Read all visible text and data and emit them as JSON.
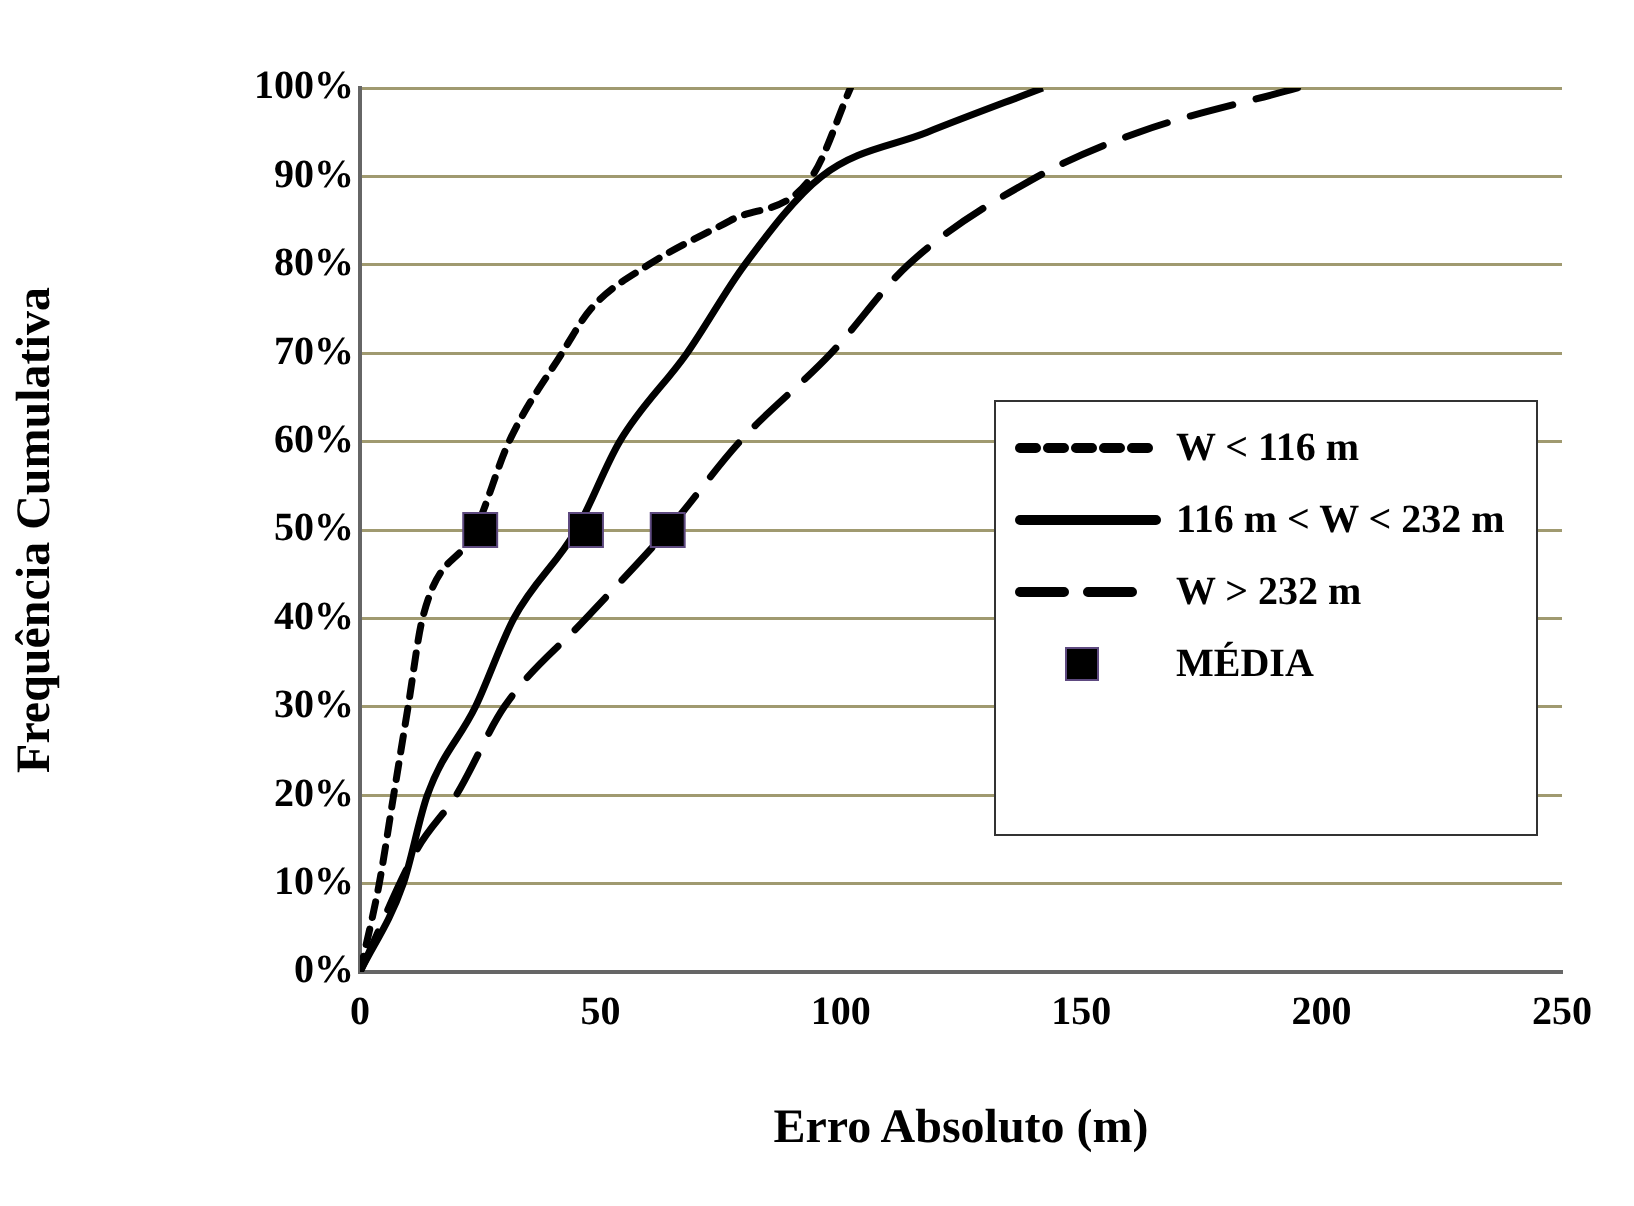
{
  "chart_data": {
    "type": "line",
    "xlabel": "Erro Absoluto (m)",
    "ylabel": "Frequência Cumulativa",
    "xlim": [
      0,
      250
    ],
    "xticks": [
      0,
      50,
      100,
      150,
      200,
      250
    ],
    "ylim": [
      0,
      100
    ],
    "yticks": [
      {
        "value": 0,
        "label": "0%"
      },
      {
        "value": 10,
        "label": "10%"
      },
      {
        "value": 20,
        "label": "20%"
      },
      {
        "value": 30,
        "label": "30%"
      },
      {
        "value": 40,
        "label": "40%"
      },
      {
        "value": 50,
        "label": "50%"
      },
      {
        "value": 60,
        "label": "60%"
      },
      {
        "value": 70,
        "label": "70%"
      },
      {
        "value": 80,
        "label": "80%"
      },
      {
        "value": 90,
        "label": "90%"
      },
      {
        "value": 100,
        "label": "100%"
      }
    ],
    "grid": "y",
    "legend": "right",
    "marker": "none",
    "series": [
      {
        "name": "W < 116 m",
        "color": "#000000",
        "line_style": "dotted",
        "x": [
          0,
          4,
          7,
          10,
          13,
          24,
          31,
          42,
          48,
          60,
          77,
          94,
          102
        ],
        "values": [
          0,
          10,
          20,
          30,
          40,
          50,
          60,
          70,
          75,
          80,
          85,
          90,
          100
        ]
      },
      {
        "name": "116 m < W < 232 m",
        "color": "#000000",
        "line_style": "solid",
        "x": [
          0,
          9,
          14,
          24,
          32,
          45,
          54,
          68,
          80,
          96,
          118,
          142
        ],
        "values": [
          0,
          10,
          20,
          30,
          40,
          50,
          60,
          70,
          80,
          90,
          95,
          100
        ]
      },
      {
        "name": "W > 232 m",
        "color": "#000000",
        "line_style": "dashed",
        "x": [
          0,
          12,
          20,
          30,
          47,
          64,
          79,
          98,
          114,
          141,
          162,
          195
        ],
        "values": [
          0,
          14,
          20,
          30,
          40,
          50,
          60,
          70,
          80,
          90,
          95,
          100
        ]
      },
      {
        "name": "MÉDIA",
        "type": "scatter",
        "color": "#000000",
        "marker": "square",
        "x": [
          25,
          47,
          64
        ],
        "values": [
          50,
          50,
          50
        ]
      }
    ]
  }
}
